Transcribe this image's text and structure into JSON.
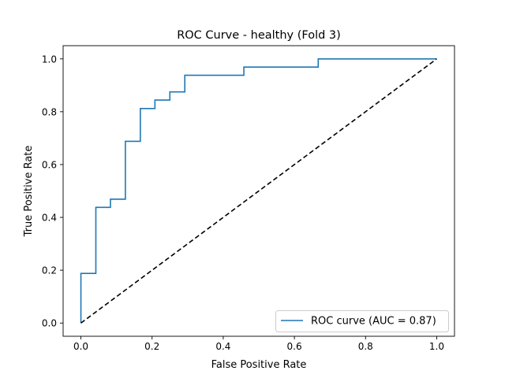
{
  "chart_data": {
    "type": "line",
    "title": "ROC Curve - healthy (Fold 3)",
    "xlabel": "False Positive Rate",
    "ylabel": "True Positive Rate",
    "xlim": [
      -0.05,
      1.05
    ],
    "ylim": [
      -0.05,
      1.05
    ],
    "x_ticks": [
      0.0,
      0.2,
      0.4,
      0.6,
      0.8,
      1.0
    ],
    "y_ticks": [
      0.0,
      0.2,
      0.4,
      0.6,
      0.8,
      1.0
    ],
    "x_tick_labels": [
      "0.0",
      "0.2",
      "0.4",
      "0.6",
      "0.8",
      "1.0"
    ],
    "y_tick_labels": [
      "0.0",
      "0.2",
      "0.4",
      "0.6",
      "0.8",
      "1.0"
    ],
    "grid": false,
    "legend_position": "lower-right",
    "series": [
      {
        "name": "ROC curve (AUC = 0.87)",
        "color": "#1f77b4",
        "style": "solid",
        "x": [
          0.0,
          0.0,
          0.042,
          0.042,
          0.083,
          0.083,
          0.125,
          0.125,
          0.167,
          0.167,
          0.208,
          0.208,
          0.25,
          0.25,
          0.292,
          0.292,
          0.458,
          0.458,
          0.667,
          0.667,
          1.0
        ],
        "y": [
          0.0,
          0.188,
          0.188,
          0.438,
          0.438,
          0.469,
          0.469,
          0.688,
          0.688,
          0.812,
          0.812,
          0.844,
          0.844,
          0.875,
          0.875,
          0.938,
          0.938,
          0.969,
          0.969,
          1.0,
          1.0
        ]
      },
      {
        "color": "#000000",
        "style": "dashed",
        "x": [
          0.0,
          1.0
        ],
        "y": [
          0.0,
          1.0
        ]
      }
    ]
  }
}
